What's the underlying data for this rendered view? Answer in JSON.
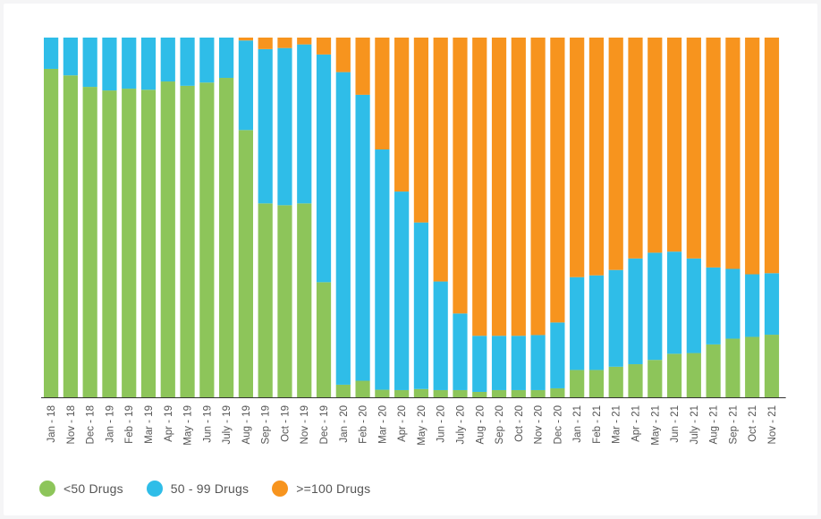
{
  "chart_data": {
    "type": "bar",
    "stacked": "percent",
    "categories": [
      "Jan - 18",
      "Nov - 18",
      "Dec - 18",
      "Jan - 19",
      "Feb - 19",
      "Mar - 19",
      "Apr - 19",
      "May - 19",
      "Jun - 19",
      "July - 19",
      "Aug - 19",
      "Sep - 19",
      "Oct - 19",
      "Nov - 19",
      "Dec - 19",
      "Jan - 20",
      "Feb - 20",
      "Mar - 20",
      "Apr - 20",
      "May - 20",
      "Jun - 20",
      "July - 20",
      "Aug - 20",
      "Sep - 20",
      "Oct - 20",
      "Nov - 20",
      "Dec - 20",
      "Jan - 21",
      "Feb - 21",
      "Mar - 21",
      "Apr - 21",
      "May - 21",
      "Jun - 21",
      "July - 21",
      "Aug - 21",
      "Sep - 21",
      "Oct - 21",
      "Nov - 21"
    ],
    "series": [
      {
        "name": "<50 Drugs",
        "color": "#8dc55a",
        "values": [
          91.3,
          89.5,
          86.3,
          85.3,
          85.8,
          85.5,
          87.8,
          86.6,
          87.5,
          88.8,
          74.3,
          53.9,
          53.4,
          53.9,
          32,
          3.5,
          4.6,
          2.1,
          2,
          2.3,
          2,
          2,
          1.5,
          2,
          2,
          2,
          2.5,
          7.6,
          7.6,
          8.5,
          9.2,
          10.4,
          12.1,
          12.3,
          14.7,
          16.3,
          16.8,
          17.4
        ]
      },
      {
        "name": "50 - 99 Drugs",
        "color": "#2fbde8",
        "values": [
          8.7,
          10.5,
          13.7,
          14.7,
          14.2,
          14.5,
          12.2,
          13.4,
          12.5,
          11.2,
          24.9,
          42.9,
          43.7,
          44.2,
          63.3,
          86.9,
          79.5,
          66.8,
          55.2,
          46.3,
          30.2,
          21.3,
          15.6,
          15.1,
          15.1,
          15.3,
          18.3,
          25.8,
          26.3,
          26.9,
          29.4,
          29.8,
          28.4,
          26.3,
          21.4,
          19.4,
          17.4,
          17.1
        ]
      },
      {
        "name": ">=100 Drugs",
        "color": "#f7941e",
        "values": [
          0,
          0,
          0,
          0,
          0,
          0,
          0,
          0,
          0,
          0,
          0.8,
          3.2,
          2.9,
          1.9,
          4.7,
          9.6,
          15.9,
          31.1,
          42.8,
          51.4,
          67.8,
          76.7,
          82.9,
          82.9,
          82.9,
          82.7,
          79.2,
          66.6,
          66.1,
          64.6,
          61.4,
          59.8,
          59.5,
          61.4,
          63.9,
          64.3,
          65.8,
          65.5
        ]
      }
    ],
    "ylim": [
      0,
      100
    ],
    "title": "",
    "xlabel": "",
    "ylabel": "",
    "grid": false,
    "legend_position": "bottom-left"
  }
}
